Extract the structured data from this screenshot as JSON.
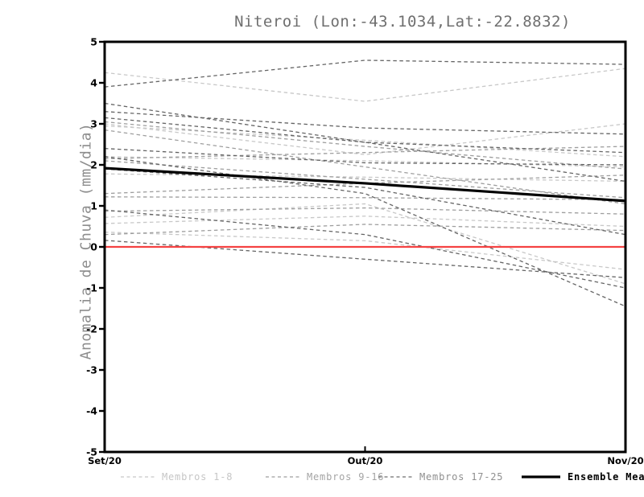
{
  "title": "Niteroi (Lon:-43.1034,Lat:-22.8832)",
  "colors": {
    "background": "#ffffff",
    "axis": "#000000",
    "zero_line": "#f54242",
    "title_text": "#6f6f6f",
    "ylabel_text": "#8d8d8d",
    "members_1_8": "#c8c8c8",
    "members_9_16": "#9e9e9e",
    "members_17_25": "#646464",
    "ensemble_mean": "#000000"
  },
  "chart_data": {
    "type": "line",
    "title": "Niteroi (Lon:-43.1034,Lat:-22.8832)",
    "xlabel": "",
    "ylabel": "Anomalia de Chuva (mm/dia)",
    "x_categories": [
      "Set/20",
      "Out/20",
      "Nov/20"
    ],
    "ylim": [
      -5,
      5
    ],
    "y_ticks": [
      5,
      4,
      3,
      2,
      1,
      0,
      -1,
      -2,
      -3,
      -4,
      -5
    ],
    "grid": false,
    "legend_position": "bottom",
    "zero_line": {
      "value": 0,
      "color": "#f54242",
      "style": "solid"
    },
    "groups": [
      {
        "name": "Membros 1-8",
        "color": "#c8c8c8",
        "style": "dashed",
        "members": [
          [
            4.25,
            3.55,
            4.35
          ],
          [
            3.0,
            2.25,
            3.0
          ],
          [
            2.95,
            2.6,
            2.2
          ],
          [
            2.2,
            2.1,
            1.95
          ],
          [
            1.78,
            1.7,
            1.6
          ],
          [
            0.72,
            1.05,
            -0.9
          ],
          [
            0.57,
            0.75,
            0.5
          ],
          [
            0.36,
            0.15,
            -0.55
          ]
        ]
      },
      {
        "name": "Membros 9-16",
        "color": "#9e9e9e",
        "style": "dashed",
        "members": [
          [
            3.05,
            2.45,
            1.9
          ],
          [
            2.85,
            1.95,
            1.05
          ],
          [
            2.15,
            2.3,
            2.45
          ],
          [
            2.1,
            1.65,
            1.2
          ],
          [
            1.3,
            1.55,
            1.75
          ],
          [
            1.22,
            1.2,
            1.15
          ],
          [
            0.87,
            0.95,
            0.8
          ],
          [
            0.3,
            0.55,
            0.4
          ]
        ]
      },
      {
        "name": "Membros 17-25",
        "color": "#646464",
        "style": "dashed",
        "members": [
          [
            3.9,
            4.55,
            4.45
          ],
          [
            3.5,
            2.55,
            1.6
          ],
          [
            3.3,
            2.9,
            2.75
          ],
          [
            3.15,
            2.55,
            2.3
          ],
          [
            2.4,
            2.05,
            2.0
          ],
          [
            2.2,
            1.3,
            -1.45
          ],
          [
            1.9,
            1.45,
            0.3
          ],
          [
            0.9,
            0.3,
            -1.0
          ],
          [
            0.16,
            -0.3,
            -0.75
          ]
        ]
      }
    ],
    "ensemble_mean": {
      "name": "Ensemble Mean",
      "color": "#000000",
      "style": "solid",
      "values": [
        1.92,
        1.55,
        1.12
      ]
    }
  },
  "legend": {
    "entries": [
      {
        "label": "Membros 1-8",
        "line_color": "#c8c8c8",
        "text_color": "#c6c6c6",
        "style": "dashed"
      },
      {
        "label": "Membros 9-16",
        "line_color": "#9e9e9e",
        "text_color": "#a4a4a4",
        "style": "dashed"
      },
      {
        "label": "Membros 17-25",
        "line_color": "#6f6f6f",
        "text_color": "#8f8f8f",
        "style": "dashed"
      },
      {
        "label": "Ensemble Mean",
        "line_color": "#000000",
        "text_color": "#000000",
        "style": "solid"
      }
    ]
  }
}
